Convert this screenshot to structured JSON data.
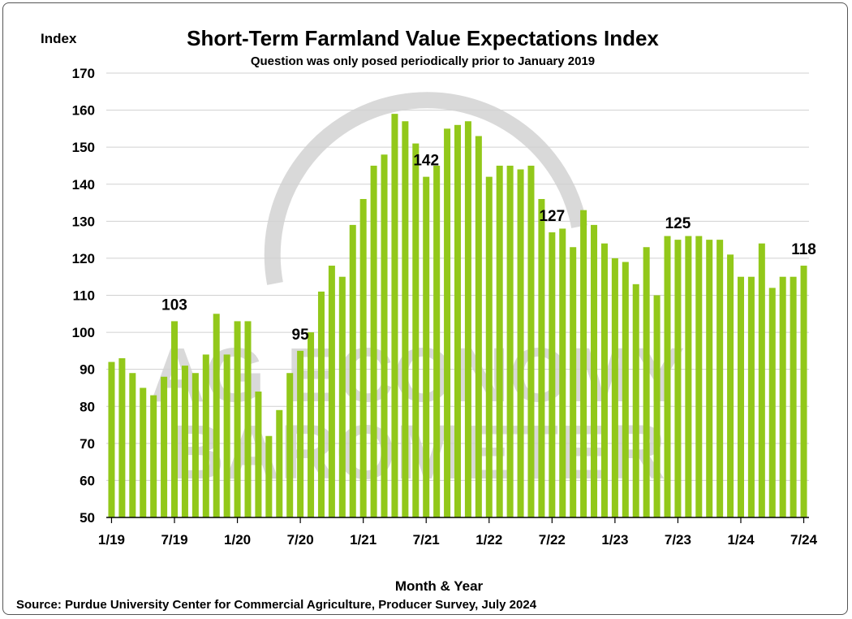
{
  "chart_data": {
    "type": "bar",
    "title": "Short-Term Farmland Value Expectations Index",
    "subtitle": "Question was only posed periodically prior to January 2019",
    "ylabel": "Index",
    "xlabel": "Month & Year",
    "source": "Source: Purdue University Center for Commercial Agriculture, Producer Survey, July 2024",
    "ylim": [
      50,
      170
    ],
    "yticks": [
      50,
      60,
      70,
      80,
      90,
      100,
      110,
      120,
      130,
      140,
      150,
      160,
      170
    ],
    "xtick_labels": [
      "1/19",
      "7/19",
      "1/20",
      "7/20",
      "1/21",
      "7/21",
      "1/22",
      "7/22",
      "1/23",
      "7/23",
      "1/24",
      "7/24"
    ],
    "grid": "horizontal",
    "bar_color": "#92c81a",
    "series": [
      {
        "values": [
          92,
          93,
          89,
          85,
          83,
          88,
          103,
          91,
          89,
          94,
          105,
          94,
          103,
          103,
          84,
          72,
          79,
          89,
          95,
          100,
          111,
          118,
          115,
          129,
          136,
          145,
          148,
          159,
          157,
          151,
          142,
          145,
          155,
          156,
          157,
          153,
          142,
          145,
          145,
          144,
          145,
          136,
          127,
          128,
          123,
          133,
          129,
          124,
          120,
          119,
          113,
          123,
          110,
          126,
          125,
          126,
          126,
          125,
          125,
          121,
          115,
          115,
          124,
          112,
          115,
          115,
          118
        ]
      }
    ],
    "data_labels": [
      {
        "index": 6,
        "text": "103"
      },
      {
        "index": 18,
        "text": "95"
      },
      {
        "index": 30,
        "text": "142"
      },
      {
        "index": 42,
        "text": "127"
      },
      {
        "index": 54,
        "text": "125"
      },
      {
        "index": 66,
        "text": "118"
      }
    ]
  },
  "watermark": {
    "line1": "AG ECONOMY",
    "line2": "BAROMETER",
    "color": "#d9d9d9"
  }
}
